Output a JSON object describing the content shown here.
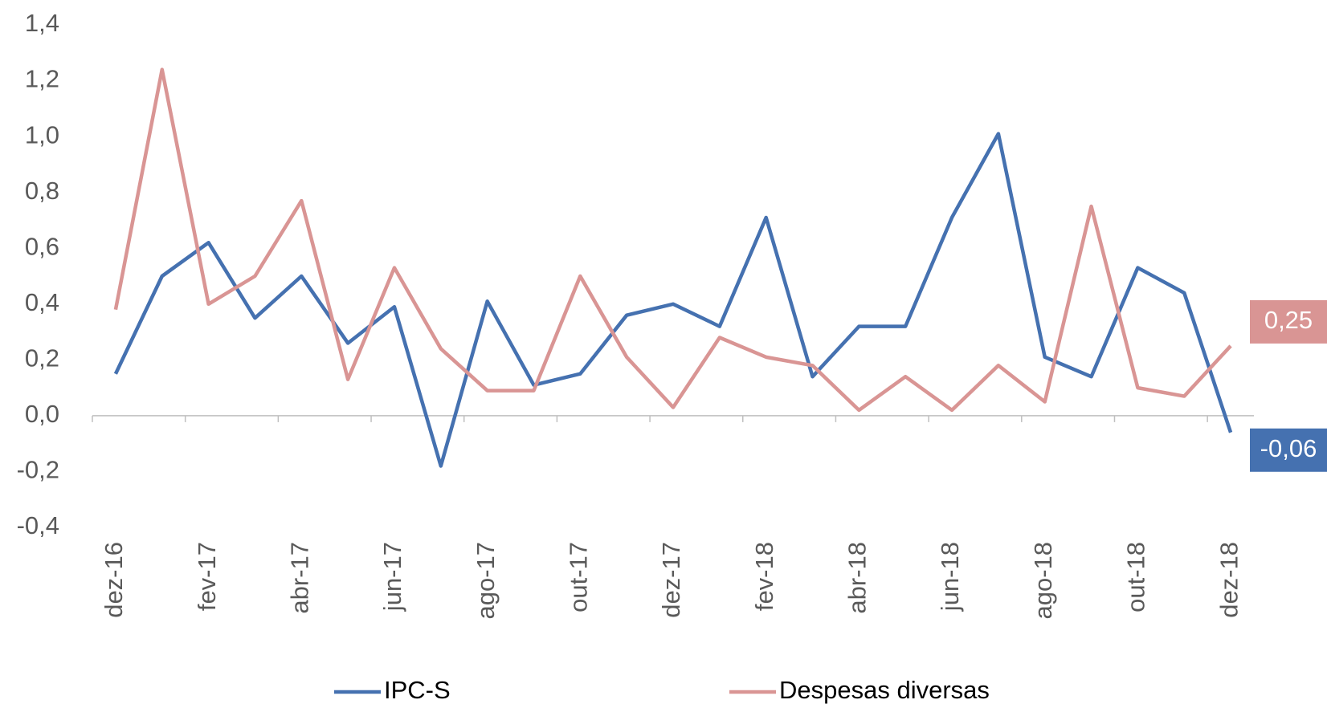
{
  "chart_data": {
    "type": "line",
    "categories": [
      "dez-16",
      null,
      "fev-17",
      null,
      "abr-17",
      null,
      "jun-17",
      null,
      "ago-17",
      null,
      "out-17",
      null,
      "dez-17",
      null,
      "fev-18",
      null,
      "abr-18",
      null,
      "jun-18",
      null,
      "ago-18",
      null,
      "out-18",
      null,
      "dez-18"
    ],
    "series": [
      {
        "name": "IPC-S",
        "color": "#4571b0",
        "values": [
          0.15,
          0.5,
          0.62,
          0.35,
          0.5,
          0.26,
          0.39,
          -0.18,
          0.41,
          0.11,
          0.15,
          0.36,
          0.4,
          0.32,
          0.71,
          0.14,
          0.32,
          0.32,
          0.71,
          1.01,
          0.21,
          0.14,
          0.53,
          0.44,
          -0.06
        ],
        "value_labels": [
          null,
          null,
          null,
          null,
          null,
          null,
          null,
          null,
          null,
          null,
          null,
          null,
          null,
          null,
          null,
          null,
          null,
          null,
          null,
          null,
          null,
          null,
          null,
          null,
          "-0,06"
        ]
      },
      {
        "name": "Despesas diversas",
        "color": "#d99594",
        "values": [
          0.38,
          1.24,
          0.4,
          0.5,
          0.77,
          0.13,
          0.53,
          0.24,
          0.09,
          0.09,
          0.5,
          0.21,
          0.03,
          0.28,
          0.21,
          0.18,
          0.02,
          0.14,
          0.02,
          0.18,
          0.05,
          0.75,
          0.1,
          0.07,
          0.25
        ],
        "value_labels": [
          null,
          null,
          null,
          null,
          null,
          null,
          null,
          null,
          null,
          null,
          null,
          null,
          null,
          null,
          null,
          null,
          null,
          null,
          null,
          null,
          null,
          null,
          null,
          null,
          "0,25"
        ]
      }
    ],
    "ylim": [
      -0.4,
      1.4
    ],
    "yticks": [
      {
        "value": -0.4,
        "label": "-0,4"
      },
      {
        "value": -0.2,
        "label": "-0,2"
      },
      {
        "value": 0,
        "label": "0,0"
      },
      {
        "value": 0.2,
        "label": "0,2"
      },
      {
        "value": 0.4,
        "label": "0,4"
      },
      {
        "value": 0.6,
        "label": "0,6"
      },
      {
        "value": 0.8,
        "label": "0,8"
      },
      {
        "value": 1.0,
        "label": "1,0"
      },
      {
        "value": 1.2,
        "label": "1,2"
      },
      {
        "value": 1.4,
        "label": "1,4"
      }
    ],
    "grid": false,
    "legend": "bottom"
  }
}
